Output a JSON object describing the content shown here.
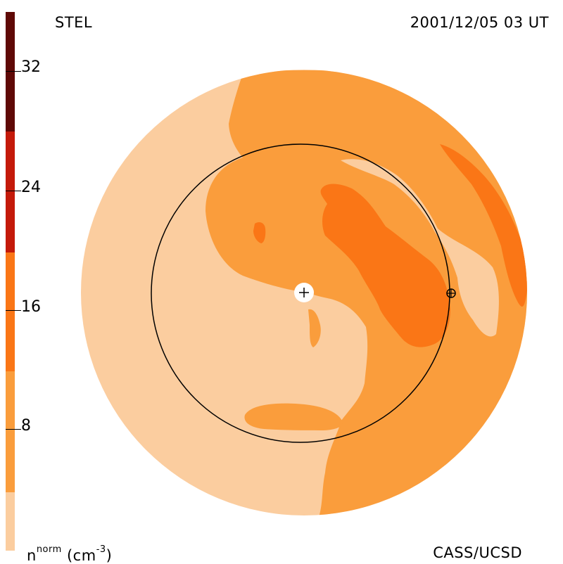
{
  "header": {
    "instrument": "STEL",
    "datetime": "2001/12/05 03 UT"
  },
  "footer": {
    "unit_base": "n",
    "unit_sup": "norm",
    "unit_paren": "(cm",
    "unit_exp": "-3",
    "unit_close": ")",
    "credit": "CASS/UCSD"
  },
  "colorbar": {
    "range": [
      0,
      36
    ],
    "colors": [
      "#fbcd9f",
      "#fa9d3c",
      "#fa7616",
      "#e14b0b",
      "#c41a0a",
      "#8e0a07",
      "#5f0906",
      "#2b0503"
    ],
    "tick_values": [
      "8",
      "16",
      "24",
      "32"
    ]
  },
  "colors": {
    "lightest": "#fbcd9f",
    "light": "#fa9d3c",
    "medium": "#fa7616",
    "background": "#ffffff",
    "line": "#000000"
  }
}
